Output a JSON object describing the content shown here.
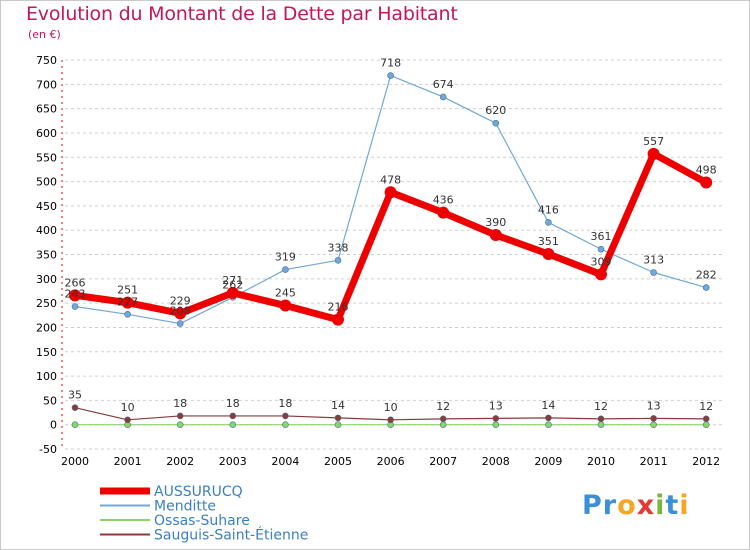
{
  "header": {
    "title": "Evolution du Montant de la Dette par Habitant",
    "subtitle": "(en €)"
  },
  "logo": {
    "text": "Proxiti",
    "letters": [
      "P",
      "r",
      "o",
      "x",
      "i",
      "t",
      "i"
    ],
    "colors": [
      "#3a8fd8",
      "#3a8fd8",
      "#f5a623",
      "#e53935",
      "#7cb342",
      "#3a8fd8",
      "#f5a623"
    ]
  },
  "colors": {
    "title": "#c2185b",
    "axis_text": "#000000",
    "grid": "#cfcfcf"
  },
  "chart_data": {
    "type": "line",
    "title": "Evolution du Montant de la Dette par Habitant",
    "subtitle": "(en €)",
    "xlabel": "",
    "ylabel": "",
    "ylim": [
      -50,
      750
    ],
    "y_ticks": [
      -50,
      0,
      50,
      100,
      150,
      200,
      250,
      300,
      350,
      400,
      450,
      500,
      550,
      600,
      650,
      700,
      750
    ],
    "categories": [
      "2000",
      "2001",
      "2002",
      "2003",
      "2004",
      "2005",
      "2006",
      "2007",
      "2008",
      "2009",
      "2010",
      "2011",
      "2012"
    ],
    "grid": "horizontal dashed",
    "legend_position": "bottom-left",
    "series": [
      {
        "name": "AUSSURUCQ",
        "color": "#ee0000",
        "values": [
          266,
          251,
          229,
          271,
          245,
          216,
          478,
          436,
          390,
          351,
          309,
          557,
          498
        ],
        "labels": [
          "266",
          "251",
          "229",
          "271",
          "245",
          "216",
          "478",
          "436",
          "390",
          "351",
          "309",
          "557",
          "498"
        ]
      },
      {
        "name": "Menditte",
        "color": "#6fa8dc",
        "values": [
          243,
          227,
          208,
          262,
          319,
          338,
          718,
          674,
          620,
          416,
          361,
          313,
          282
        ],
        "labels": [
          "243",
          "227",
          "208",
          "262",
          "319",
          "338",
          "718",
          "674",
          "620",
          "416",
          "361",
          "313",
          "282"
        ]
      },
      {
        "name": "Ossas-Suhare",
        "color": "#88d66a",
        "values": [
          0,
          0,
          0,
          0,
          0,
          0,
          0,
          0,
          0,
          0,
          0,
          0,
          0
        ],
        "labels": []
      },
      {
        "name": "Sauguis-Saint-Étienne",
        "color": "#8b3a3a",
        "values": [
          35,
          10,
          18,
          18,
          18,
          14,
          10,
          12,
          13,
          14,
          12,
          13,
          12
        ],
        "labels": [
          "35",
          "10",
          "18",
          "18",
          "18",
          "14",
          "10",
          "12",
          "13",
          "14",
          "12",
          "13",
          "12"
        ]
      }
    ]
  }
}
